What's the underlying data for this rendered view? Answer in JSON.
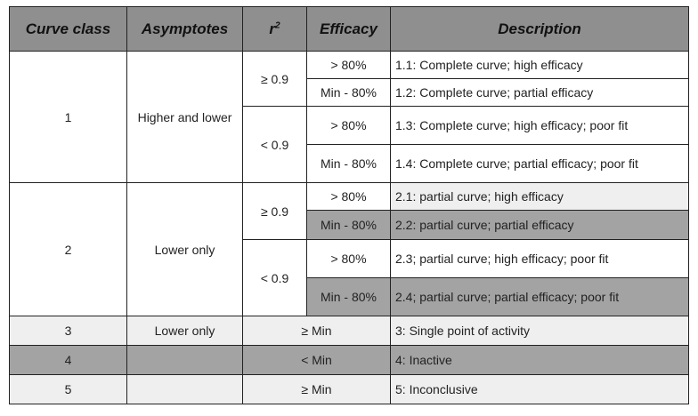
{
  "headers": {
    "curve_class": "Curve class",
    "asymptotes": "Asymptotes",
    "r_base": "r",
    "r_sup": "2",
    "efficacy": "Efficacy",
    "description": "Description"
  },
  "groups": [
    {
      "curve_class": "1",
      "asymptotes": "Higher and lower",
      "r2_bands": [
        {
          "r2": "≥ 0.9",
          "rows": [
            {
              "efficacy": "> 80%",
              "description": "1.1: Complete curve; high efficacy"
            },
            {
              "efficacy": "Min - 80%",
              "description": "1.2: Complete curve; partial efficacy"
            }
          ]
        },
        {
          "r2": "< 0.9",
          "rows": [
            {
              "efficacy": "> 80%",
              "description": "1.3: Complete curve; high efficacy; poor fit"
            },
            {
              "efficacy": "Min - 80%",
              "description": "1.4: Complete curve; partial efficacy; poor fit"
            }
          ]
        }
      ]
    },
    {
      "curve_class": "2",
      "asymptotes": "Lower only",
      "r2_bands": [
        {
          "r2": "≥ 0.9",
          "rows": [
            {
              "efficacy": "> 80%",
              "description": "2.1: partial curve; high efficacy"
            },
            {
              "efficacy": "Min - 80%",
              "description": "2.2: partial curve; partial efficacy"
            }
          ]
        },
        {
          "r2": "< 0.9",
          "rows": [
            {
              "efficacy": "> 80%",
              "description": "2.3; partial curve; high efficacy; poor fit"
            },
            {
              "efficacy": "Min - 80%",
              "description": "2.4; partial curve; partial efficacy; poor fit"
            }
          ]
        }
      ]
    }
  ],
  "single_rows": [
    {
      "curve_class": "3",
      "asymptotes": "Lower only",
      "efficacy": "≥ Min",
      "description": "3: Single point of activity"
    },
    {
      "curve_class": "4",
      "asymptotes": "",
      "efficacy": "< Min",
      "description": "4: Inactive"
    },
    {
      "curve_class": "5",
      "asymptotes": "",
      "efficacy": "≥ Min",
      "description": "5: Inconclusive"
    }
  ],
  "colors": {
    "header_bg": "#8f8f8f",
    "shaded_row": "#a3a3a3",
    "light_row": "#efefef"
  }
}
